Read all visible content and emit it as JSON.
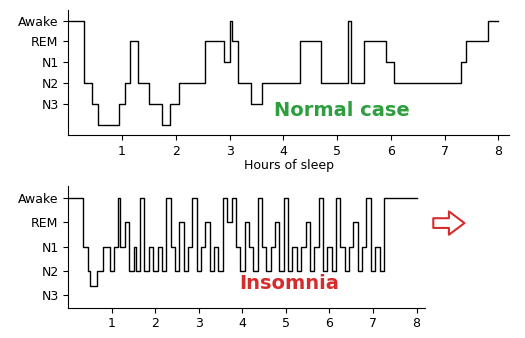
{
  "chart_data": [
    {
      "type": "line",
      "line_style": "steps",
      "color": "#000000",
      "xlabel": "Hours of sleep",
      "annotations": [
        {
          "text": "Normal case",
          "color": "#2e9e3e"
        }
      ],
      "x": [
        0,
        0.3,
        0.45,
        0.55,
        0.95,
        1.05,
        1.15,
        1.3,
        1.5,
        1.75,
        1.9,
        2.05,
        2.55,
        2.9,
        3.0,
        3.05,
        3.15,
        3.4,
        3.6,
        4.3,
        4.7,
        5.2,
        5.25,
        5.5,
        5.9,
        6.05,
        7.3,
        7.4,
        7.8,
        8.0
      ],
      "values": [
        5,
        2,
        1,
        0,
        1,
        2,
        4,
        2,
        1,
        0,
        1,
        2,
        4,
        3,
        5,
        4,
        2,
        1,
        2,
        4,
        2,
        5,
        2,
        4,
        3,
        2,
        3,
        4,
        5,
        5
      ],
      "xlim": [
        0,
        8.2
      ],
      "xticks": [
        1,
        2,
        3,
        4,
        5,
        6,
        7,
        8
      ],
      "ylim": [
        -0.5,
        5.5
      ],
      "yticks": [
        {
          "value": 1,
          "label": "N3"
        },
        {
          "value": 2,
          "label": "N2"
        },
        {
          "value": 3,
          "label": "N1"
        },
        {
          "value": 4,
          "label": "REM"
        },
        {
          "value": 5,
          "label": "Awake"
        }
      ]
    },
    {
      "type": "line",
      "line_style": "steps",
      "color": "#000000",
      "annotations": [
        {
          "text": "Insomnia",
          "color": "#d62c2c"
        }
      ],
      "x": [
        0,
        0.35,
        0.45,
        0.5,
        0.65,
        0.8,
        0.95,
        1.05,
        1.15,
        1.2,
        1.3,
        1.4,
        1.5,
        1.55,
        1.65,
        1.75,
        1.85,
        1.95,
        2.05,
        2.15,
        2.25,
        2.35,
        2.45,
        2.55,
        2.65,
        2.75,
        2.85,
        2.95,
        3.05,
        3.15,
        3.25,
        3.35,
        3.45,
        3.55,
        3.65,
        3.75,
        3.85,
        3.95,
        4.05,
        4.15,
        4.25,
        4.35,
        4.45,
        4.55,
        4.65,
        4.75,
        4.85,
        4.95,
        5.05,
        5.15,
        5.25,
        5.35,
        5.45,
        5.55,
        5.65,
        5.75,
        5.85,
        5.95,
        6.05,
        6.15,
        6.25,
        6.35,
        6.45,
        6.55,
        6.65,
        6.75,
        6.85,
        6.95,
        7.05,
        7.15,
        7.25,
        7.4,
        8.0
      ],
      "values": [
        5,
        3,
        2,
        1.4,
        2,
        3,
        2,
        3,
        5,
        3,
        4,
        2,
        3,
        2,
        5,
        2,
        3,
        2,
        3,
        2,
        5,
        3,
        2,
        4,
        2,
        3,
        5,
        2,
        3,
        4,
        2,
        3,
        2,
        5,
        4,
        5,
        3,
        2,
        4,
        3,
        2,
        5,
        3,
        2,
        3,
        4,
        2,
        5,
        2,
        3,
        2,
        3,
        4,
        2,
        3,
        5,
        2,
        3,
        2,
        5,
        3,
        2,
        3,
        4,
        2,
        3,
        5,
        2,
        3,
        2,
        5,
        5,
        5
      ],
      "xlim": [
        0,
        8.2
      ],
      "xticks": [
        1,
        2,
        3,
        4,
        5,
        6,
        7,
        8
      ],
      "ylim": [
        0.5,
        5.5
      ],
      "yticks": [
        {
          "value": 1,
          "label": "N3"
        },
        {
          "value": 2,
          "label": "N2"
        },
        {
          "value": 3,
          "label": "N1"
        },
        {
          "value": 4,
          "label": "REM"
        },
        {
          "value": 5,
          "label": "Awake"
        }
      ]
    }
  ]
}
